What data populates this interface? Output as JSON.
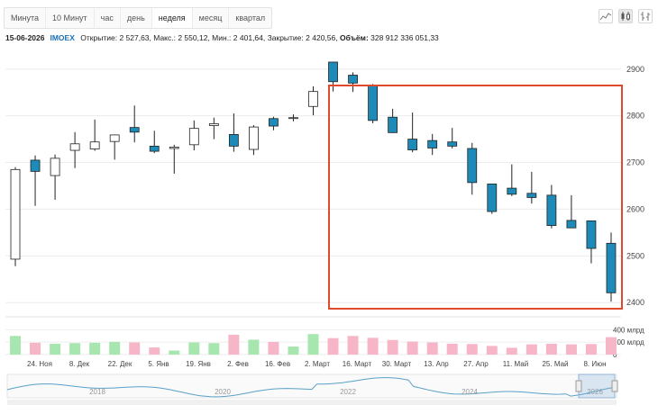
{
  "toolbar": {
    "tabs": [
      {
        "label": "Минута",
        "active": false
      },
      {
        "label": "10 Минут",
        "active": false
      },
      {
        "label": "час",
        "active": false
      },
      {
        "label": "день",
        "active": false
      },
      {
        "label": "неделя",
        "active": true
      },
      {
        "label": "месяц",
        "active": false
      },
      {
        "label": "квартал",
        "active": false
      }
    ],
    "chart_type_icons": [
      "line-chart-icon",
      "candlestick-icon",
      "bar-chart-icon"
    ]
  },
  "info": {
    "date": "15-06-2026",
    "ticker": "IMOEX",
    "open_label": "Открытие:",
    "open": "2 527,63",
    "high_label": "Макс.:",
    "high": "2 550,12",
    "low_label": "Мин.:",
    "low": "2 401,64",
    "close_label": "Закрытие:",
    "close": "2 420,56",
    "volume_label": "Объём:",
    "volume": "328 912 336 051,33"
  },
  "colors": {
    "up": "#ffffff",
    "down": "#1e8ab8",
    "wick": "#222222",
    "vol_up": "#a8e6b0",
    "vol_down": "#f7b6c8",
    "highlight": "#e04a2c"
  },
  "chart_data": {
    "type": "candlestick",
    "y_ticks": [
      "2900",
      "2800",
      "2700",
      "2600",
      "2500",
      "2400"
    ],
    "ylim": [
      2385,
      2940
    ],
    "volume_ticks": [
      "400 млрд",
      "200 млрд",
      "0"
    ],
    "volume_ylim": [
      0,
      550
    ],
    "x_tick_labels": [
      "24. Ноя",
      "8. Дек",
      "22. Дек",
      "5. Янв",
      "19. Янв",
      "2. Фев",
      "16. Фев",
      "2. Март",
      "16. Март",
      "30. Март",
      "13. Апр",
      "27. Апр",
      "11. Май",
      "25. Май",
      "8. Июн"
    ],
    "navigator_labels": [
      "2018",
      "2020",
      "2022",
      "2024",
      "2026"
    ],
    "candles": [
      {
        "o": 2493,
        "h": 2690,
        "l": 2478,
        "c": 2685,
        "v": 300
      },
      {
        "o": 2705,
        "h": 2715,
        "l": 2607,
        "c": 2681,
        "v": 190
      },
      {
        "o": 2672,
        "h": 2717,
        "l": 2620,
        "c": 2709,
        "v": 175
      },
      {
        "o": 2726,
        "h": 2765,
        "l": 2688,
        "c": 2740,
        "v": 185
      },
      {
        "o": 2729,
        "h": 2792,
        "l": 2725,
        "c": 2744,
        "v": 190
      },
      {
        "o": 2745,
        "h": 2760,
        "l": 2706,
        "c": 2759,
        "v": 205
      },
      {
        "o": 2775,
        "h": 2822,
        "l": 2743,
        "c": 2765,
        "v": 195
      },
      {
        "o": 2735,
        "h": 2768,
        "l": 2720,
        "c": 2724,
        "v": 115
      },
      {
        "o": 2730,
        "h": 2738,
        "l": 2676,
        "c": 2733,
        "v": 65
      },
      {
        "o": 2738,
        "h": 2790,
        "l": 2726,
        "c": 2773,
        "v": 195
      },
      {
        "o": 2779,
        "h": 2796,
        "l": 2750,
        "c": 2783,
        "v": 185
      },
      {
        "o": 2760,
        "h": 2805,
        "l": 2723,
        "c": 2735,
        "v": 320
      },
      {
        "o": 2728,
        "h": 2780,
        "l": 2716,
        "c": 2776,
        "v": 240
      },
      {
        "o": 2794,
        "h": 2798,
        "l": 2769,
        "c": 2778,
        "v": 205
      },
      {
        "o": 2795,
        "h": 2803,
        "l": 2788,
        "c": 2796,
        "v": 130
      },
      {
        "o": 2820,
        "h": 2863,
        "l": 2801,
        "c": 2852,
        "v": 330
      },
      {
        "o": 2915,
        "h": 2915,
        "l": 2852,
        "c": 2873,
        "v": 265
      },
      {
        "o": 2887,
        "h": 2893,
        "l": 2851,
        "c": 2870,
        "v": 300
      },
      {
        "o": 2865,
        "h": 2868,
        "l": 2784,
        "c": 2790,
        "v": 270
      },
      {
        "o": 2797,
        "h": 2815,
        "l": 2763,
        "c": 2764,
        "v": 235
      },
      {
        "o": 2750,
        "h": 2807,
        "l": 2722,
        "c": 2727,
        "v": 210
      },
      {
        "o": 2747,
        "h": 2761,
        "l": 2716,
        "c": 2731,
        "v": 195
      },
      {
        "o": 2744,
        "h": 2774,
        "l": 2730,
        "c": 2735,
        "v": 175
      },
      {
        "o": 2730,
        "h": 2742,
        "l": 2631,
        "c": 2657,
        "v": 170
      },
      {
        "o": 2654,
        "h": 2653,
        "l": 2590,
        "c": 2595,
        "v": 140
      },
      {
        "o": 2645,
        "h": 2696,
        "l": 2628,
        "c": 2632,
        "v": 110
      },
      {
        "o": 2634,
        "h": 2680,
        "l": 2612,
        "c": 2625,
        "v": 165
      },
      {
        "o": 2630,
        "h": 2652,
        "l": 2559,
        "c": 2565,
        "v": 175
      },
      {
        "o": 2576,
        "h": 2630,
        "l": 2561,
        "c": 2560,
        "v": 165
      },
      {
        "o": 2575,
        "h": 2575,
        "l": 2484,
        "c": 2516,
        "v": 170
      },
      {
        "o": 2527,
        "h": 2550,
        "l": 2402,
        "c": 2421,
        "v": 280
      }
    ]
  }
}
